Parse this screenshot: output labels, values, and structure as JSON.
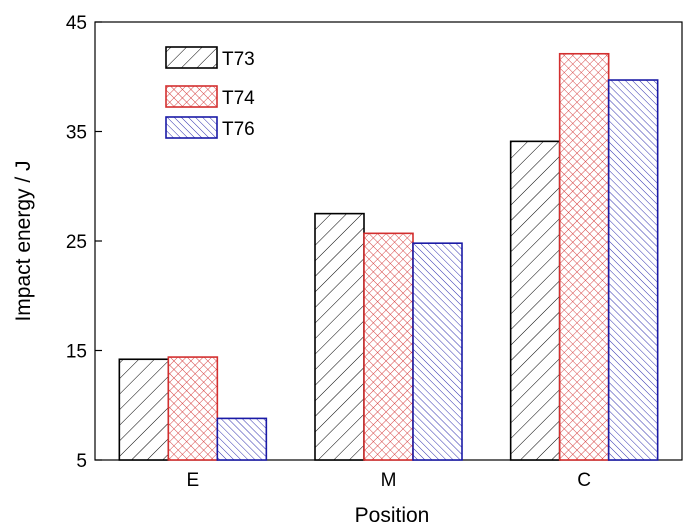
{
  "chart_data": {
    "type": "bar",
    "title": "",
    "xlabel": "Position",
    "ylabel": "Impact energy / J",
    "categories": [
      "E",
      "M",
      "C"
    ],
    "ylim": [
      5,
      45
    ],
    "yticks": [
      5,
      15,
      25,
      35,
      45
    ],
    "grid": false,
    "legend_position": "top-left",
    "series": [
      {
        "name": "T73",
        "values": [
          14.2,
          27.5,
          34.1
        ],
        "color": "#000000",
        "pattern": "diagonal-forward"
      },
      {
        "name": "T74",
        "values": [
          14.4,
          25.7,
          42.1
        ],
        "color": "#d32f2f",
        "pattern": "crosshatch"
      },
      {
        "name": "T76",
        "values": [
          8.8,
          24.8,
          39.7
        ],
        "color": "#1a1aa6",
        "pattern": "diagonal-back"
      }
    ]
  }
}
